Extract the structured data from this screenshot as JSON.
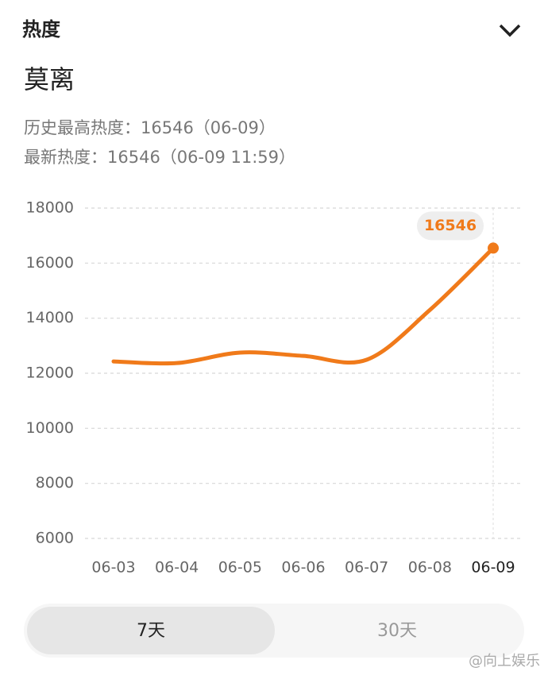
{
  "header": {
    "title": "热度",
    "name": "莫离"
  },
  "info": {
    "peak": "历史最高热度：16546（06-09）",
    "latest": "最新热度：16546（06-09 11:59）"
  },
  "chart_data": {
    "type": "line",
    "categories": [
      "06-03",
      "06-04",
      "06-05",
      "06-06",
      "06-07",
      "06-08",
      "06-09"
    ],
    "series": [
      {
        "name": "莫离",
        "color": "#f07a1a",
        "values": [
          12430,
          12370,
          12750,
          12630,
          12490,
          14300,
          16546
        ]
      }
    ],
    "ylim": [
      6000,
      18000
    ],
    "yticks": [
      6000,
      8000,
      10000,
      12000,
      14000,
      16000,
      18000
    ],
    "grid": true
  },
  "tabs": [
    "7天",
    "30天"
  ],
  "watermark": "@向上娱乐"
}
